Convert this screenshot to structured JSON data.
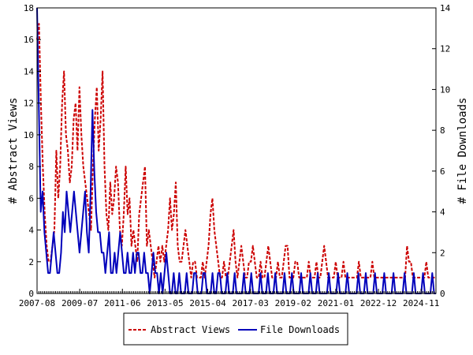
{
  "chart_data": {
    "type": "line",
    "x_start": "2007-08",
    "x_end": "2025-07",
    "x_tick_labels": [
      "2007-08",
      "2009-07",
      "2011-06",
      "2013-05",
      "2015-04",
      "2017-03",
      "2019-02",
      "2021-01",
      "2022-12",
      "2024-11"
    ],
    "ylabel_left": "# Abstract Views",
    "ylabel_right": "# File Downloads",
    "ylim_left": [
      0,
      18
    ],
    "ylim_right": [
      0,
      14
    ],
    "yticks_left": [
      0,
      2,
      4,
      6,
      8,
      10,
      12,
      14,
      16,
      18
    ],
    "yticks_right": [
      0,
      2,
      4,
      6,
      8,
      10,
      12,
      14
    ],
    "legend_position": "bottom-center",
    "series": [
      {
        "name": "Abstract Views",
        "axis": "left",
        "color": "#cc0000",
        "style": "dashed",
        "values": [
          16,
          17,
          12,
          8,
          5,
          3,
          2,
          2,
          3,
          4,
          9,
          6,
          8,
          12,
          14,
          10,
          9,
          7,
          8,
          11,
          12,
          9,
          13,
          10,
          8,
          7,
          6,
          5,
          4,
          8,
          11,
          13,
          9,
          11,
          14,
          8,
          5,
          4,
          7,
          5,
          6,
          8,
          7,
          4,
          3,
          5,
          8,
          5,
          6,
          3,
          4,
          3,
          2,
          5,
          6,
          7,
          8,
          3,
          4,
          3,
          2,
          1,
          2,
          3,
          2,
          3,
          2,
          3,
          4,
          6,
          4,
          5,
          7,
          3,
          2,
          2,
          3,
          4,
          3,
          2,
          1,
          2,
          2,
          1,
          1,
          1,
          2,
          1,
          2,
          3,
          5,
          6,
          4,
          3,
          2,
          1,
          1,
          2,
          1,
          1,
          2,
          3,
          4,
          2,
          1,
          2,
          3,
          2,
          1,
          1,
          2,
          2,
          3,
          2,
          1,
          1,
          2,
          1,
          1,
          2,
          3,
          2,
          1,
          1,
          1,
          2,
          1,
          1,
          2,
          3,
          3,
          1,
          1,
          1,
          2,
          2,
          1,
          1,
          1,
          1,
          1,
          2,
          1,
          1,
          1,
          2,
          1,
          1,
          2,
          3,
          2,
          1,
          1,
          1,
          1,
          2,
          1,
          1,
          1,
          2,
          1,
          1,
          1,
          1,
          1,
          1,
          1,
          2,
          1,
          1,
          1,
          1,
          1,
          1,
          2,
          1,
          1,
          1,
          1,
          1,
          1,
          1,
          1,
          1,
          1,
          1,
          1,
          1,
          1,
          1,
          1,
          1,
          3,
          2,
          2,
          1,
          1,
          1,
          1,
          1,
          1,
          1,
          2,
          1,
          1,
          1,
          1,
          1
        ]
      },
      {
        "name": "File Downloads",
        "axis": "right",
        "color": "#0000bb",
        "style": "solid",
        "values": [
          14,
          9,
          4,
          5,
          3,
          2,
          1,
          1,
          2,
          3,
          2,
          1,
          1,
          2,
          4,
          3,
          5,
          4,
          3,
          4,
          5,
          4,
          3,
          2,
          3,
          4,
          5,
          3,
          2,
          5,
          9,
          6,
          4,
          3,
          3,
          2,
          2,
          1,
          2,
          3,
          1,
          1,
          2,
          1,
          2,
          3,
          2,
          1,
          1,
          2,
          1,
          1,
          2,
          1,
          2,
          2,
          1,
          1,
          2,
          1,
          1,
          0,
          1,
          2,
          1,
          1,
          0,
          1,
          0,
          1,
          2,
          1,
          0,
          0,
          1,
          0,
          0,
          1,
          0,
          0,
          0,
          1,
          0,
          0,
          0,
          1,
          1,
          0,
          0,
          0,
          1,
          1,
          0,
          0,
          0,
          1,
          0,
          0,
          1,
          1,
          0,
          0,
          0,
          1,
          0,
          0,
          0,
          1,
          0,
          0,
          0,
          0,
          1,
          0,
          0,
          0,
          1,
          0,
          0,
          0,
          0,
          1,
          0,
          0,
          0,
          1,
          0,
          0,
          0,
          1,
          0,
          0,
          0,
          0,
          1,
          0,
          0,
          0,
          1,
          0,
          0,
          0,
          0,
          1,
          0,
          0,
          0,
          0,
          1,
          0,
          0,
          0,
          1,
          0,
          0,
          0,
          0,
          0,
          1,
          0,
          0,
          0,
          0,
          1,
          0,
          0,
          0,
          0,
          1,
          0,
          0,
          0,
          0,
          0,
          1,
          0,
          0,
          0,
          1,
          0,
          0,
          0,
          0,
          1,
          0,
          0,
          0,
          0,
          1,
          0,
          0,
          0,
          0,
          1,
          0,
          0,
          0,
          0,
          0,
          1,
          0,
          0,
          0,
          0,
          1,
          0,
          0,
          0,
          0,
          1,
          0,
          0,
          0,
          0,
          1,
          0,
          0
        ]
      }
    ]
  }
}
